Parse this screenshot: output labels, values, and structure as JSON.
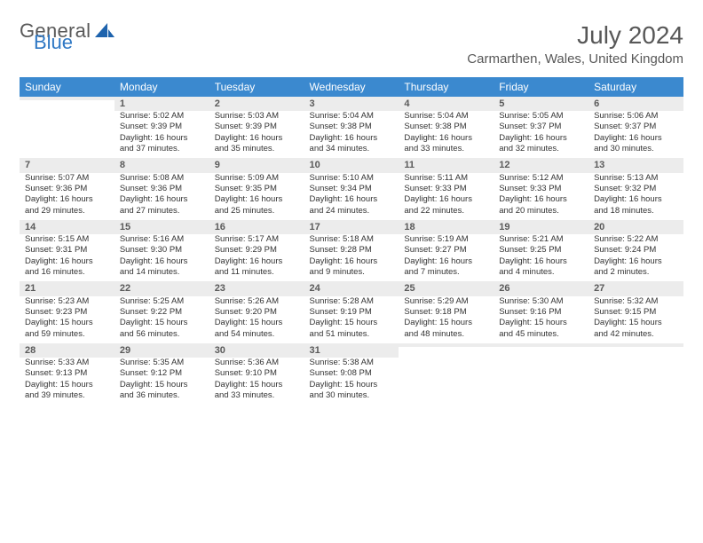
{
  "brand": {
    "word1": "General",
    "word2": "Blue"
  },
  "header": {
    "month_title": "July 2024",
    "location": "Carmarthen, Wales, United Kingdom"
  },
  "colors": {
    "header_bg": "#3b89cf",
    "daynum_bg": "#ececec",
    "week_sep": "#2661a3",
    "text": "#333333",
    "title_text": "#585858"
  },
  "day_headers": [
    "Sunday",
    "Monday",
    "Tuesday",
    "Wednesday",
    "Thursday",
    "Friday",
    "Saturday"
  ],
  "weeks": [
    [
      null,
      {
        "n": "1",
        "sunrise": "Sunrise: 5:02 AM",
        "sunset": "Sunset: 9:39 PM",
        "dl1": "Daylight: 16 hours",
        "dl2": "and 37 minutes."
      },
      {
        "n": "2",
        "sunrise": "Sunrise: 5:03 AM",
        "sunset": "Sunset: 9:39 PM",
        "dl1": "Daylight: 16 hours",
        "dl2": "and 35 minutes."
      },
      {
        "n": "3",
        "sunrise": "Sunrise: 5:04 AM",
        "sunset": "Sunset: 9:38 PM",
        "dl1": "Daylight: 16 hours",
        "dl2": "and 34 minutes."
      },
      {
        "n": "4",
        "sunrise": "Sunrise: 5:04 AM",
        "sunset": "Sunset: 9:38 PM",
        "dl1": "Daylight: 16 hours",
        "dl2": "and 33 minutes."
      },
      {
        "n": "5",
        "sunrise": "Sunrise: 5:05 AM",
        "sunset": "Sunset: 9:37 PM",
        "dl1": "Daylight: 16 hours",
        "dl2": "and 32 minutes."
      },
      {
        "n": "6",
        "sunrise": "Sunrise: 5:06 AM",
        "sunset": "Sunset: 9:37 PM",
        "dl1": "Daylight: 16 hours",
        "dl2": "and 30 minutes."
      }
    ],
    [
      {
        "n": "7",
        "sunrise": "Sunrise: 5:07 AM",
        "sunset": "Sunset: 9:36 PM",
        "dl1": "Daylight: 16 hours",
        "dl2": "and 29 minutes."
      },
      {
        "n": "8",
        "sunrise": "Sunrise: 5:08 AM",
        "sunset": "Sunset: 9:36 PM",
        "dl1": "Daylight: 16 hours",
        "dl2": "and 27 minutes."
      },
      {
        "n": "9",
        "sunrise": "Sunrise: 5:09 AM",
        "sunset": "Sunset: 9:35 PM",
        "dl1": "Daylight: 16 hours",
        "dl2": "and 25 minutes."
      },
      {
        "n": "10",
        "sunrise": "Sunrise: 5:10 AM",
        "sunset": "Sunset: 9:34 PM",
        "dl1": "Daylight: 16 hours",
        "dl2": "and 24 minutes."
      },
      {
        "n": "11",
        "sunrise": "Sunrise: 5:11 AM",
        "sunset": "Sunset: 9:33 PM",
        "dl1": "Daylight: 16 hours",
        "dl2": "and 22 minutes."
      },
      {
        "n": "12",
        "sunrise": "Sunrise: 5:12 AM",
        "sunset": "Sunset: 9:33 PM",
        "dl1": "Daylight: 16 hours",
        "dl2": "and 20 minutes."
      },
      {
        "n": "13",
        "sunrise": "Sunrise: 5:13 AM",
        "sunset": "Sunset: 9:32 PM",
        "dl1": "Daylight: 16 hours",
        "dl2": "and 18 minutes."
      }
    ],
    [
      {
        "n": "14",
        "sunrise": "Sunrise: 5:15 AM",
        "sunset": "Sunset: 9:31 PM",
        "dl1": "Daylight: 16 hours",
        "dl2": "and 16 minutes."
      },
      {
        "n": "15",
        "sunrise": "Sunrise: 5:16 AM",
        "sunset": "Sunset: 9:30 PM",
        "dl1": "Daylight: 16 hours",
        "dl2": "and 14 minutes."
      },
      {
        "n": "16",
        "sunrise": "Sunrise: 5:17 AM",
        "sunset": "Sunset: 9:29 PM",
        "dl1": "Daylight: 16 hours",
        "dl2": "and 11 minutes."
      },
      {
        "n": "17",
        "sunrise": "Sunrise: 5:18 AM",
        "sunset": "Sunset: 9:28 PM",
        "dl1": "Daylight: 16 hours",
        "dl2": "and 9 minutes."
      },
      {
        "n": "18",
        "sunrise": "Sunrise: 5:19 AM",
        "sunset": "Sunset: 9:27 PM",
        "dl1": "Daylight: 16 hours",
        "dl2": "and 7 minutes."
      },
      {
        "n": "19",
        "sunrise": "Sunrise: 5:21 AM",
        "sunset": "Sunset: 9:25 PM",
        "dl1": "Daylight: 16 hours",
        "dl2": "and 4 minutes."
      },
      {
        "n": "20",
        "sunrise": "Sunrise: 5:22 AM",
        "sunset": "Sunset: 9:24 PM",
        "dl1": "Daylight: 16 hours",
        "dl2": "and 2 minutes."
      }
    ],
    [
      {
        "n": "21",
        "sunrise": "Sunrise: 5:23 AM",
        "sunset": "Sunset: 9:23 PM",
        "dl1": "Daylight: 15 hours",
        "dl2": "and 59 minutes."
      },
      {
        "n": "22",
        "sunrise": "Sunrise: 5:25 AM",
        "sunset": "Sunset: 9:22 PM",
        "dl1": "Daylight: 15 hours",
        "dl2": "and 56 minutes."
      },
      {
        "n": "23",
        "sunrise": "Sunrise: 5:26 AM",
        "sunset": "Sunset: 9:20 PM",
        "dl1": "Daylight: 15 hours",
        "dl2": "and 54 minutes."
      },
      {
        "n": "24",
        "sunrise": "Sunrise: 5:28 AM",
        "sunset": "Sunset: 9:19 PM",
        "dl1": "Daylight: 15 hours",
        "dl2": "and 51 minutes."
      },
      {
        "n": "25",
        "sunrise": "Sunrise: 5:29 AM",
        "sunset": "Sunset: 9:18 PM",
        "dl1": "Daylight: 15 hours",
        "dl2": "and 48 minutes."
      },
      {
        "n": "26",
        "sunrise": "Sunrise: 5:30 AM",
        "sunset": "Sunset: 9:16 PM",
        "dl1": "Daylight: 15 hours",
        "dl2": "and 45 minutes."
      },
      {
        "n": "27",
        "sunrise": "Sunrise: 5:32 AM",
        "sunset": "Sunset: 9:15 PM",
        "dl1": "Daylight: 15 hours",
        "dl2": "and 42 minutes."
      }
    ],
    [
      {
        "n": "28",
        "sunrise": "Sunrise: 5:33 AM",
        "sunset": "Sunset: 9:13 PM",
        "dl1": "Daylight: 15 hours",
        "dl2": "and 39 minutes."
      },
      {
        "n": "29",
        "sunrise": "Sunrise: 5:35 AM",
        "sunset": "Sunset: 9:12 PM",
        "dl1": "Daylight: 15 hours",
        "dl2": "and 36 minutes."
      },
      {
        "n": "30",
        "sunrise": "Sunrise: 5:36 AM",
        "sunset": "Sunset: 9:10 PM",
        "dl1": "Daylight: 15 hours",
        "dl2": "and 33 minutes."
      },
      {
        "n": "31",
        "sunrise": "Sunrise: 5:38 AM",
        "sunset": "Sunset: 9:08 PM",
        "dl1": "Daylight: 15 hours",
        "dl2": "and 30 minutes."
      },
      null,
      null,
      null
    ]
  ]
}
